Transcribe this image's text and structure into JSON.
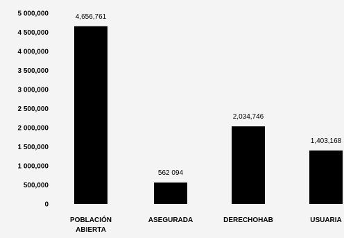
{
  "chart_data": {
    "type": "bar",
    "categories": [
      [
        "POBLACIÓN",
        "ABIERTA"
      ],
      [
        "ASEGURADA"
      ],
      [
        "DERECHOHAB"
      ],
      [
        "USUARIA"
      ]
    ],
    "values": [
      4656761,
      562094,
      2034746,
      1403168
    ],
    "value_labels": [
      "4,656,761",
      "562 094",
      "2,034,746",
      "1,403,168"
    ],
    "y_ticks": [
      0,
      500000,
      1000000,
      1500000,
      2000000,
      2500000,
      3000000,
      3500000,
      4000000,
      4500000,
      5000000
    ],
    "y_tick_labels": [
      "0",
      "500,000",
      "1 000,000",
      "1 500,000",
      "2 000,000",
      "2 500,000",
      "3 000,000",
      "3 500,000",
      "4 000,000",
      "4 500,000",
      "5 000,000"
    ],
    "ylim": [
      0,
      5000000
    ],
    "bar_color": "#000000",
    "grid": false,
    "title": "",
    "xlabel": "",
    "ylabel": ""
  }
}
